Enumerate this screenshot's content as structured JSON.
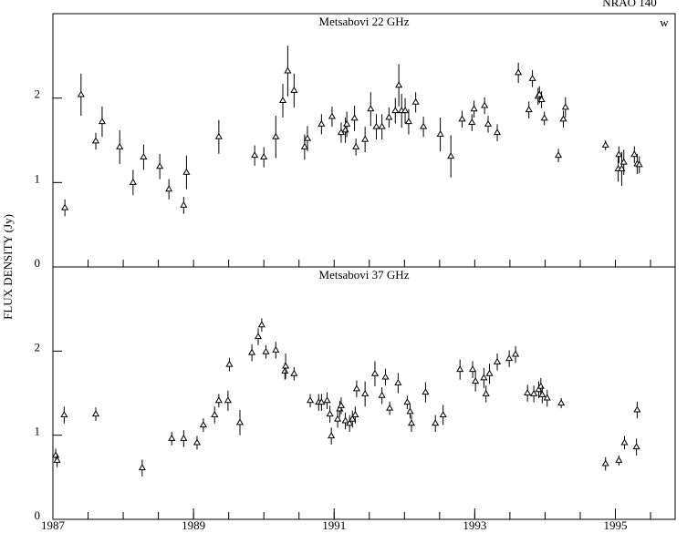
{
  "chart_data": [
    {
      "type": "scatter",
      "title": "NRAO 140",
      "annotation": "w",
      "ylabel": "FLUX DENSITY (Jy)",
      "label": "Metsabovi 22 GHz",
      "xlim": [
        1987,
        1995.85
      ],
      "ylim": [
        0,
        3
      ],
      "yticks": [
        0,
        1,
        2
      ],
      "xminor": [
        1987.5,
        1988,
        1988.5,
        1989,
        1989.5,
        1990,
        1990.5,
        1991,
        1991.5,
        1992,
        1992.5,
        1993,
        1993.5,
        1994,
        1994.5,
        1995,
        1995.5
      ],
      "x": [
        1987.17,
        1987.4,
        1987.61,
        1987.7,
        1987.95,
        1988.14,
        1988.29,
        1988.52,
        1988.65,
        1988.86,
        1988.9,
        1989.36,
        1989.87,
        1990.0,
        1990.17,
        1990.27,
        1990.34,
        1990.43,
        1990.58,
        1990.62,
        1990.82,
        1990.97,
        1991.1,
        1991.16,
        1991.18,
        1991.29,
        1991.31,
        1991.44,
        1991.52,
        1991.6,
        1991.68,
        1991.78,
        1991.87,
        1991.92,
        1991.96,
        1992.01,
        1992.06,
        1992.16,
        1992.27,
        1992.51,
        1992.66,
        1992.82,
        1992.96,
        1992.99,
        1993.14,
        1993.19,
        1993.32,
        1993.62,
        1993.77,
        1993.82,
        1993.9,
        1993.92,
        1993.95,
        1993.99,
        1994.19,
        1994.26,
        1994.29,
        1994.86,
        1995.04,
        1995.05,
        1995.09,
        1995.12,
        1995.27,
        1995.31,
        1995.34
      ],
      "values": [
        0.7,
        2.04,
        1.49,
        1.72,
        1.42,
        1.0,
        1.3,
        1.19,
        0.92,
        0.73,
        1.12,
        1.54,
        1.32,
        1.3,
        1.54,
        1.97,
        2.32,
        2.09,
        1.42,
        1.52,
        1.69,
        1.78,
        1.59,
        1.62,
        1.69,
        1.76,
        1.42,
        1.51,
        1.87,
        1.66,
        1.66,
        1.77,
        1.85,
        2.15,
        1.85,
        1.85,
        1.72,
        1.95,
        1.66,
        1.57,
        1.31,
        1.75,
        1.71,
        1.87,
        1.91,
        1.69,
        1.59,
        2.3,
        1.86,
        2.23,
        2.02,
        2.04,
        1.98,
        1.76,
        1.32,
        1.75,
        1.89,
        1.44,
        1.16,
        1.33,
        1.16,
        1.24,
        1.33,
        1.22,
        1.21
      ],
      "errors": [
        0.1,
        0.25,
        0.1,
        0.18,
        0.2,
        0.15,
        0.15,
        0.15,
        0.12,
        0.1,
        0.2,
        0.2,
        0.12,
        0.12,
        0.25,
        0.2,
        0.3,
        0.2,
        0.15,
        0.15,
        0.12,
        0.12,
        0.12,
        0.15,
        0.15,
        0.15,
        0.1,
        0.15,
        0.2,
        0.15,
        0.15,
        0.12,
        0.15,
        0.25,
        0.2,
        0.15,
        0.15,
        0.12,
        0.12,
        0.2,
        0.25,
        0.1,
        0.1,
        0.1,
        0.1,
        0.1,
        0.1,
        0.12,
        0.1,
        0.1,
        0.1,
        0.1,
        0.1,
        0.08,
        0.08,
        0.1,
        0.12,
        0.06,
        0.15,
        0.1,
        0.2,
        0.15,
        0.1,
        0.12,
        0.1
      ]
    },
    {
      "type": "scatter",
      "label": "Metsabovi 37 GHz",
      "xlim": [
        1987,
        1995.85
      ],
      "ylim": [
        0,
        3
      ],
      "yticks": [
        0,
        1,
        2
      ],
      "xticks": [
        1987,
        1989,
        1991,
        1993,
        1995
      ],
      "xminor": [
        1987.5,
        1988,
        1988.5,
        1989,
        1989.5,
        1990,
        1990.5,
        1991,
        1991.5,
        1992,
        1992.5,
        1993,
        1993.5,
        1994,
        1994.5,
        1995,
        1995.5
      ],
      "x": [
        1987.04,
        1987.06,
        1987.16,
        1987.61,
        1988.27,
        1988.69,
        1988.86,
        1989.05,
        1989.14,
        1989.3,
        1989.36,
        1989.49,
        1989.51,
        1989.66,
        1989.83,
        1989.92,
        1989.97,
        1990.03,
        1990.17,
        1990.3,
        1990.31,
        1990.43,
        1990.66,
        1990.78,
        1990.82,
        1990.9,
        1990.94,
        1990.96,
        1991.05,
        1991.08,
        1991.1,
        1991.16,
        1991.22,
        1991.26,
        1991.3,
        1991.32,
        1991.44,
        1991.58,
        1991.68,
        1991.73,
        1991.79,
        1991.91,
        1992.04,
        1992.08,
        1992.1,
        1992.3,
        1992.44,
        1992.55,
        1992.79,
        1992.97,
        1993.01,
        1993.13,
        1993.16,
        1993.21,
        1993.32,
        1993.49,
        1993.58,
        1993.75,
        1993.84,
        1993.91,
        1993.94,
        1993.96,
        1994.03,
        1994.23,
        1994.86,
        1995.05,
        1995.13,
        1995.3,
        1995.31
      ],
      "values": [
        0.76,
        0.7,
        1.24,
        1.25,
        0.61,
        0.96,
        0.96,
        0.91,
        1.12,
        1.24,
        1.41,
        1.41,
        1.84,
        1.15,
        1.98,
        2.17,
        2.31,
        1.99,
        2.01,
        1.76,
        1.82,
        1.73,
        1.41,
        1.39,
        1.39,
        1.41,
        1.25,
        0.99,
        1.19,
        1.31,
        1.35,
        1.17,
        1.14,
        1.19,
        1.24,
        1.55,
        1.49,
        1.73,
        1.47,
        1.69,
        1.32,
        1.62,
        1.39,
        1.28,
        1.14,
        1.51,
        1.14,
        1.24,
        1.78,
        1.78,
        1.64,
        1.68,
        1.49,
        1.73,
        1.87,
        1.91,
        1.96,
        1.5,
        1.49,
        1.54,
        1.58,
        1.48,
        1.44,
        1.38,
        0.66,
        0.7,
        0.91,
        0.86,
        1.3
      ],
      "errors": [
        0.08,
        0.08,
        0.1,
        0.08,
        0.1,
        0.08,
        0.1,
        0.08,
        0.08,
        0.1,
        0.08,
        0.12,
        0.08,
        0.15,
        0.1,
        0.1,
        0.08,
        0.08,
        0.1,
        0.1,
        0.15,
        0.08,
        0.08,
        0.1,
        0.1,
        0.1,
        0.1,
        0.1,
        0.1,
        0.1,
        0.1,
        0.1,
        0.1,
        0.1,
        0.1,
        0.1,
        0.15,
        0.15,
        0.1,
        0.1,
        0.08,
        0.12,
        0.08,
        0.08,
        0.1,
        0.12,
        0.1,
        0.12,
        0.12,
        0.1,
        0.12,
        0.12,
        0.1,
        0.12,
        0.1,
        0.1,
        0.1,
        0.1,
        0.1,
        0.1,
        0.1,
        0.1,
        0.1,
        0.06,
        0.08,
        0.06,
        0.08,
        0.1,
        0.1
      ]
    }
  ]
}
